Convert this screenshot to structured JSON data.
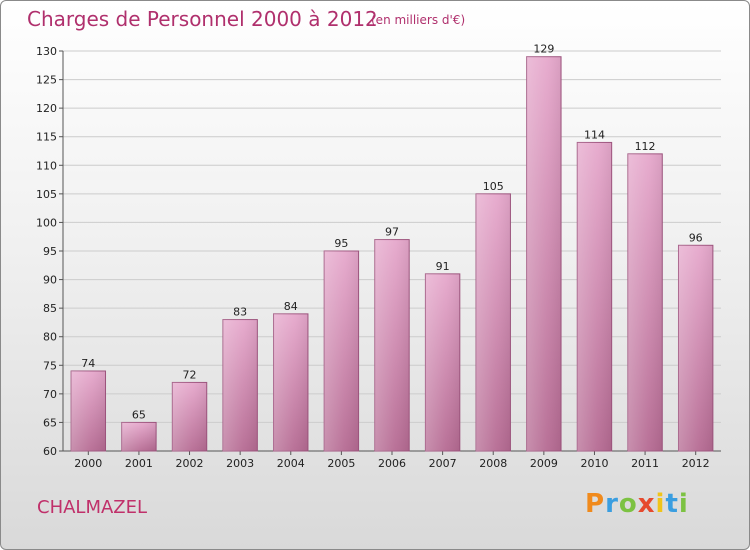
{
  "chart_data": {
    "type": "bar",
    "title": "Charges de Personnel 2000 à 2012",
    "subtitle": "(en milliers d'€)",
    "categories": [
      "2000",
      "2001",
      "2002",
      "2003",
      "2004",
      "2005",
      "2006",
      "2007",
      "2008",
      "2009",
      "2010",
      "2011",
      "2012"
    ],
    "values": [
      74,
      65,
      72,
      83,
      84,
      95,
      97,
      91,
      105,
      129,
      114,
      112,
      96
    ],
    "ylim": [
      60,
      130
    ],
    "yticks": [
      60,
      65,
      70,
      75,
      80,
      85,
      90,
      95,
      100,
      105,
      110,
      115,
      120,
      125,
      130
    ],
    "xlabel": "",
    "ylabel": "",
    "grid": true,
    "colors": {
      "bar": "#d68fb7",
      "title": "#b0306d"
    }
  },
  "commune": "CHALMAZEL",
  "logo": {
    "letters": [
      "P",
      "r",
      "o",
      "x",
      "i",
      "t",
      "i"
    ],
    "colors": [
      "#f08a1c",
      "#3a9ee0",
      "#7cc242",
      "#e64a2e",
      "#f0c419",
      "#3a9ee0",
      "#7cc242"
    ]
  }
}
